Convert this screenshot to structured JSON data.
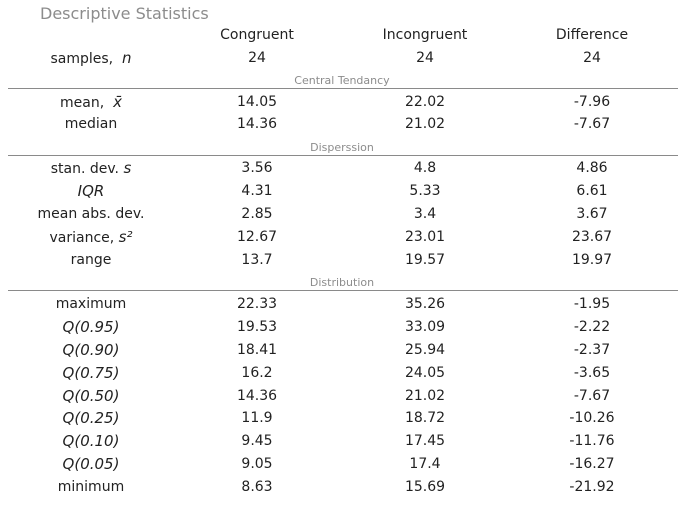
{
  "title": "Descriptive Statistics",
  "columns": [
    "Congruent",
    "Incongruent",
    "Difference"
  ],
  "samples": {
    "label": "samples,",
    "symbol": "n",
    "values": [
      "24",
      "24",
      "24"
    ]
  },
  "sections": [
    {
      "label": "Central Tendancy",
      "rows": [
        {
          "label": "mean,",
          "symbol": "x̄",
          "values": [
            "14.05",
            "22.02",
            "-7.96"
          ]
        },
        {
          "label": "median",
          "values": [
            "14.36",
            "21.02",
            "-7.67"
          ]
        }
      ]
    },
    {
      "label": "Disperssion",
      "rows": [
        {
          "label": "stan. dev.",
          "symbol": "s",
          "values": [
            "3.56",
            "4.8",
            "4.86"
          ]
        },
        {
          "label": "",
          "symbol": "IQR",
          "values": [
            "4.31",
            "5.33",
            "6.61"
          ]
        },
        {
          "label": "mean abs. dev.",
          "values": [
            "2.85",
            "3.4",
            "3.67"
          ]
        },
        {
          "label": "variance,",
          "symbol": "s²",
          "values": [
            "12.67",
            "23.01",
            "23.67"
          ]
        },
        {
          "label": "range",
          "values": [
            "13.7",
            "19.57",
            "19.97"
          ]
        }
      ]
    },
    {
      "label": "Distribution",
      "rows": [
        {
          "label": "maximum",
          "values": [
            "22.33",
            "35.26",
            "-1.95"
          ]
        },
        {
          "label": "",
          "symbol": "Q(0.95)",
          "values": [
            "19.53",
            "33.09",
            "-2.22"
          ]
        },
        {
          "label": "",
          "symbol": "Q(0.90)",
          "values": [
            "18.41",
            "25.94",
            "-2.37"
          ]
        },
        {
          "label": "",
          "symbol": "Q(0.75)",
          "values": [
            "16.2",
            "24.05",
            "-3.65"
          ]
        },
        {
          "label": "",
          "symbol": "Q(0.50)",
          "values": [
            "14.36",
            "21.02",
            "-7.67"
          ]
        },
        {
          "label": "",
          "symbol": "Q(0.25)",
          "values": [
            "11.9",
            "18.72",
            "-10.26"
          ]
        },
        {
          "label": "",
          "symbol": "Q(0.10)",
          "values": [
            "9.45",
            "17.45",
            "-11.76"
          ]
        },
        {
          "label": "",
          "symbol": "Q(0.05)",
          "values": [
            "9.05",
            "17.4",
            "-16.27"
          ]
        },
        {
          "label": "minimum",
          "values": [
            "8.63",
            "15.69",
            "-21.92"
          ]
        }
      ]
    }
  ]
}
